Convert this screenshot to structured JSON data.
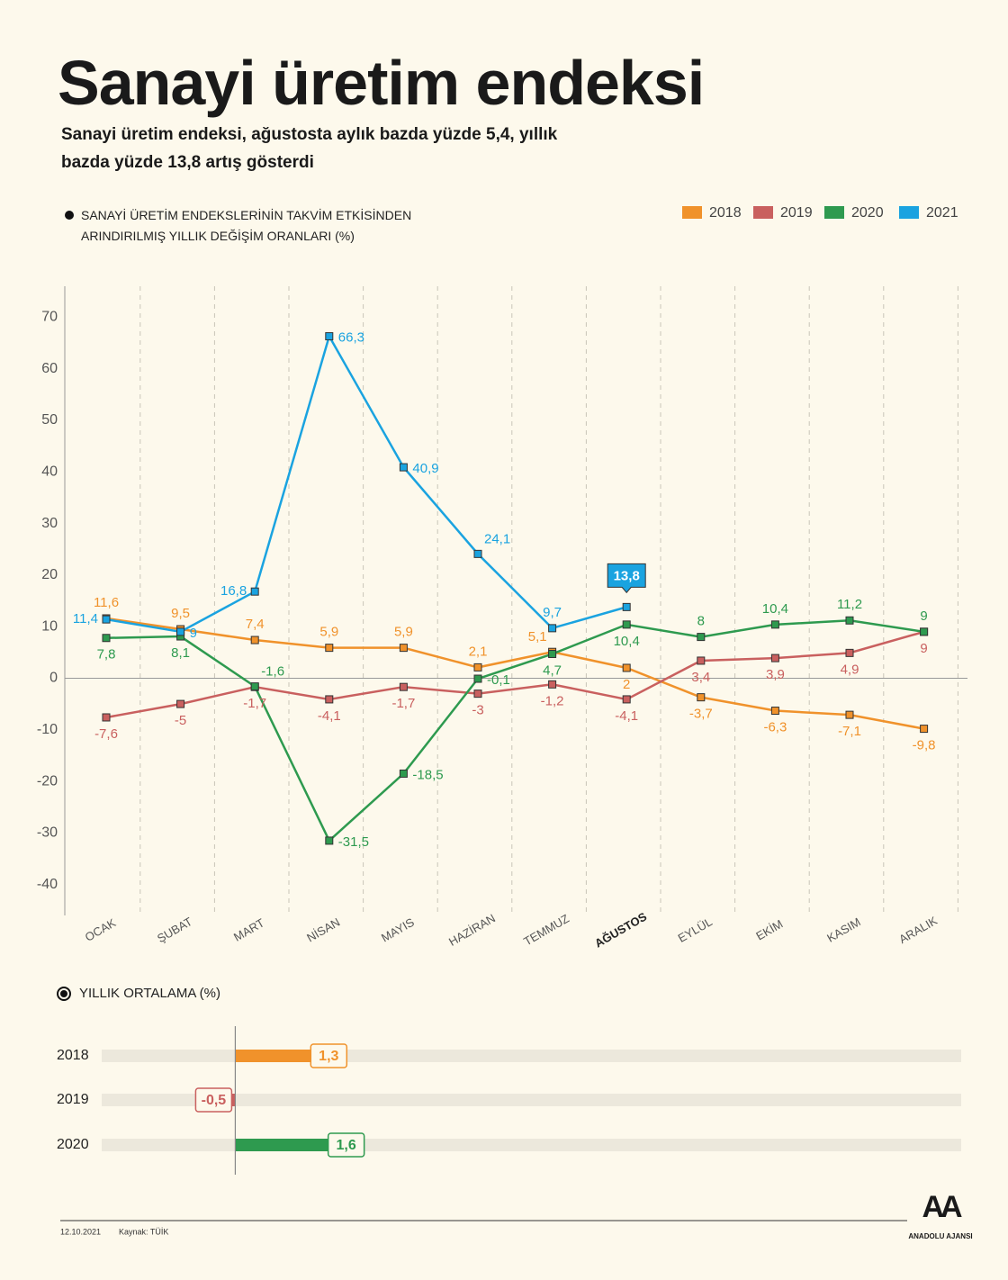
{
  "title": "Sanayi üretim endeksi",
  "subtitle": "Sanayi üretim endeksi, ağustosta aylık bazda yüzde 5,4, yıllık bazda yüzde 13,8 artış gösterdi",
  "chart_data": [
    {
      "type": "line",
      "title": "SANAYİ ÜRETİM ENDEKSLERİNİN TAKVİM ETKİSİNDEN ARINDIRILMIŞ YILLIK DEĞİŞİM ORANLARI (%)",
      "categories": [
        "OCAK",
        "ŞUBAT",
        "MART",
        "NİSAN",
        "MAYIS",
        "HAZİRAN",
        "TEMMUZ",
        "AĞUSTOS",
        "EYLÜL",
        "EKİM",
        "KASIM",
        "ARALIK"
      ],
      "highlight_index": 7,
      "series": [
        {
          "name": "2018",
          "color": "#f0922b",
          "values": [
            11.6,
            9.5,
            7.4,
            5.9,
            5.9,
            2.1,
            5.1,
            2,
            -3.7,
            -6.3,
            -7.1,
            -9.8
          ],
          "value_labels": [
            "11,6",
            "9,5",
            "7,4",
            "5,9",
            "5,9",
            "2,1",
            "5,1",
            "2",
            "-3,7",
            "-6,3",
            "-7,1",
            "-9,8"
          ]
        },
        {
          "name": "2019",
          "color": "#c9605f",
          "values": [
            -7.6,
            -5,
            -1.7,
            -4.1,
            -1.7,
            -3,
            -1.2,
            -4.1,
            3.4,
            3.9,
            4.9,
            9
          ],
          "value_labels": [
            "-7,6",
            "-5",
            "-1,7",
            "-4,1",
            "-1,7",
            "-3",
            "-1,2",
            "-4,1",
            "3,4",
            "3,9",
            "4,9",
            "9"
          ]
        },
        {
          "name": "2020",
          "color": "#2e9a4f",
          "values": [
            7.8,
            8.1,
            -1.6,
            -31.5,
            -18.5,
            -0.1,
            4.7,
            10.4,
            8,
            10.4,
            11.2,
            9
          ],
          "value_labels": [
            "7,8",
            "8,1",
            "-1,6",
            "-31,5",
            "-18,5",
            "-0,1",
            "4,7",
            "10,4",
            "8",
            "10,4",
            "11,2",
            "9"
          ]
        },
        {
          "name": "2021",
          "color": "#1aa3e0",
          "values": [
            11.4,
            9,
            16.8,
            66.3,
            40.9,
            24.1,
            9.7,
            13.8,
            null,
            null,
            null,
            null
          ],
          "value_labels": [
            "11,4",
            "9",
            "16,8",
            "66,3",
            "40,9",
            "24,1",
            "9,7",
            "13,8",
            null,
            null,
            null,
            null
          ]
        }
      ],
      "ylim": [
        -46,
        76
      ],
      "yticks": [
        -40,
        -30,
        -20,
        -10,
        0,
        10,
        20,
        30,
        40,
        50,
        60,
        70
      ],
      "legend": "top-right"
    },
    {
      "type": "hbar",
      "title": "YILLIK ORTALAMA (%)",
      "categories": [
        "2018",
        "2019",
        "2020"
      ],
      "values": [
        1.3,
        -0.5,
        1.6
      ],
      "value_labels": [
        "1,3",
        "-0,5",
        "1,6"
      ],
      "colors": [
        "#f0922b",
        "#c9605f",
        "#2e9a4f"
      ],
      "xlim": [
        -2.3,
        12.5
      ]
    }
  ],
  "footer": {
    "date": "12.10.2021",
    "source": "Kaynak: TÜİK",
    "logo": "AA",
    "logo_text": "ANADOLU AJANSI"
  }
}
